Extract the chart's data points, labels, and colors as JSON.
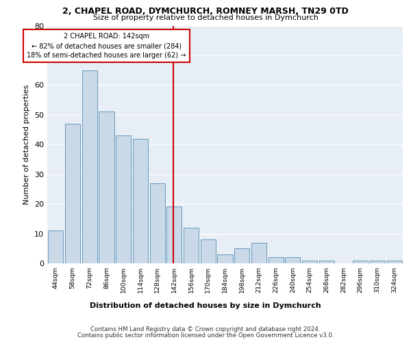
{
  "title1": "2, CHAPEL ROAD, DYMCHURCH, ROMNEY MARSH, TN29 0TD",
  "title2": "Size of property relative to detached houses in Dymchurch",
  "xlabel": "Distribution of detached houses by size in Dymchurch",
  "ylabel": "Number of detached properties",
  "bar_labels": [
    "44sqm",
    "58sqm",
    "72sqm",
    "86sqm",
    "100sqm",
    "114sqm",
    "128sqm",
    "142sqm",
    "156sqm",
    "170sqm",
    "184sqm",
    "198sqm",
    "212sqm",
    "226sqm",
    "240sqm",
    "254sqm",
    "268sqm",
    "282sqm",
    "296sqm",
    "310sqm",
    "324sqm"
  ],
  "bar_values": [
    11,
    47,
    65,
    51,
    43,
    42,
    27,
    19,
    12,
    8,
    3,
    5,
    7,
    2,
    2,
    1,
    1,
    0,
    1,
    1,
    1
  ],
  "bar_color": "#c9d9e8",
  "bar_edge_color": "#6699bb",
  "vline_x": 7,
  "vline_color": "#cc0000",
  "annotation_title": "2 CHAPEL ROAD: 142sqm",
  "annotation_line1": "← 82% of detached houses are smaller (284)",
  "annotation_line2": "18% of semi-detached houses are larger (62) →",
  "annotation_box_color": "#cc0000",
  "ylim": [
    0,
    80
  ],
  "yticks": [
    0,
    10,
    20,
    30,
    40,
    50,
    60,
    70,
    80
  ],
  "plot_bg_color": "#e8eef5",
  "footer1": "Contains HM Land Registry data © Crown copyright and database right 2024.",
  "footer2": "Contains public sector information licensed under the Open Government Licence v3.0."
}
